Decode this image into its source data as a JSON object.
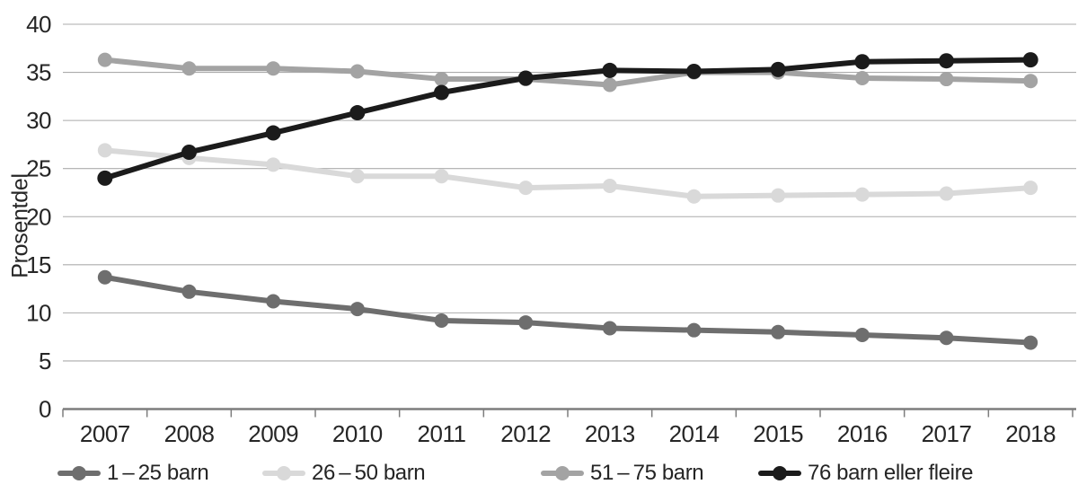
{
  "colors": {
    "background": "#ffffff",
    "gridline": "#ababab",
    "axis_line": "#7d7d7d",
    "tick": "#7d7d7d",
    "text": "#262626"
  },
  "chart_data": {
    "type": "line",
    "title": "",
    "xlabel": "",
    "ylabel": "Prosentdel",
    "ylim": [
      0,
      40
    ],
    "ytick_step": 5,
    "yticks": [
      0,
      5,
      10,
      15,
      20,
      25,
      30,
      35,
      40
    ],
    "grid": "horizontal gridlines on, vertical off",
    "legend_position": "bottom",
    "marker": "circle",
    "categories": [
      "2007",
      "2008",
      "2009",
      "2010",
      "2011",
      "2012",
      "2013",
      "2014",
      "2015",
      "2016",
      "2017",
      "2018"
    ],
    "series": [
      {
        "name": "1 – 25 barn",
        "color": "#6e6e6e",
        "values": [
          13.7,
          12.2,
          11.2,
          10.4,
          9.2,
          9.0,
          8.4,
          8.2,
          8.0,
          7.7,
          7.4,
          6.9
        ]
      },
      {
        "name": "26 – 50 barn",
        "color": "#d9d9d9",
        "values": [
          26.9,
          26.1,
          25.4,
          24.2,
          24.2,
          23.0,
          23.2,
          22.1,
          22.2,
          22.3,
          22.4,
          23.0
        ]
      },
      {
        "name": "51 – 75 barn",
        "color": "#a3a3a3",
        "values": [
          36.3,
          35.4,
          35.4,
          35.1,
          34.3,
          34.3,
          33.7,
          35.0,
          35.0,
          34.4,
          34.3,
          34.1
        ]
      },
      {
        "name": "76 barn eller fleire",
        "color": "#1b1b1b",
        "values": [
          24.0,
          26.7,
          28.7,
          30.8,
          32.9,
          34.4,
          35.2,
          35.1,
          35.3,
          36.1,
          36.2,
          36.3
        ]
      }
    ]
  }
}
